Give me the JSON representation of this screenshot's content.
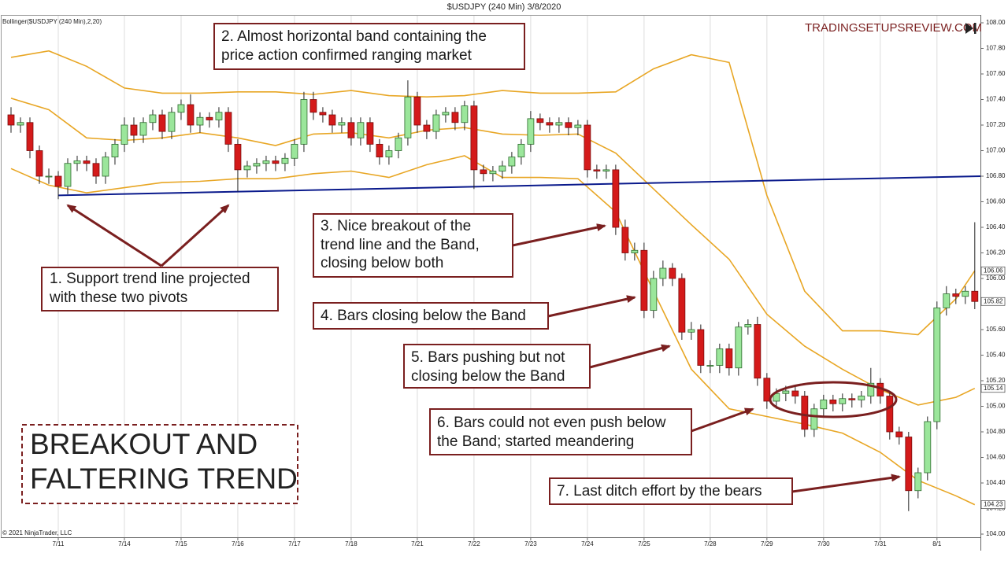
{
  "chart_data": {
    "type": "candlestick",
    "title": "$USDJPY (240 Min)  3/8/2020",
    "indicator_label": "Bollinger($USDJPY (240 Min),2,20)",
    "watermark": "TRADINGSETUPSREVIEW.COM",
    "copyright": "© 2021 NinjaTrader, LLC",
    "headline": [
      "BREAKOUT AND",
      "FALTERING TREND"
    ],
    "annotations": [
      {
        "lines": [
          "1. Support trend line projected",
          "with these two pivots"
        ]
      },
      {
        "lines": [
          "2. Almost horizontal band containing the",
          "price action confirmed ranging market"
        ]
      },
      {
        "lines": [
          "3. Nice breakout of the",
          "trend line and the Band,",
          "closing below both"
        ]
      },
      {
        "lines": [
          "4. Bars closing below the Band"
        ]
      },
      {
        "lines": [
          "5. Bars pushing but not",
          "closing below the Band"
        ]
      },
      {
        "lines": [
          "6. Bars could not even push below",
          "the Band; started meandering"
        ]
      },
      {
        "lines": [
          "7. Last ditch effort by the bears"
        ]
      }
    ],
    "categories": [
      null,
      null,
      null,
      null,
      null,
      "7/11",
      null,
      null,
      null,
      null,
      null,
      null,
      "7/14",
      null,
      null,
      null,
      null,
      null,
      "7/15",
      null,
      null,
      null,
      null,
      null,
      "7/16",
      null,
      null,
      null,
      null,
      null,
      "7/17",
      null,
      null,
      null,
      null,
      null,
      "7/18",
      null,
      null,
      null,
      null,
      null,
      null,
      "7/21",
      null,
      null,
      null,
      null,
      null,
      "7/22",
      null,
      null,
      null,
      null,
      null,
      "7/23",
      null,
      null,
      null,
      null,
      null,
      "7/24",
      null,
      null,
      null,
      null,
      null,
      "7/25",
      null,
      null,
      null,
      null,
      null,
      null,
      "7/28",
      null,
      null,
      null,
      null,
      null,
      "7/29",
      null,
      null,
      null,
      null,
      null,
      "7/30",
      null,
      null,
      null,
      null,
      null,
      "7/31",
      null,
      null,
      null,
      null,
      null,
      "8/1",
      null,
      null,
      null,
      null
    ],
    "open": [
      107.28,
      107.2,
      107.22,
      107.0,
      106.8,
      106.8,
      106.72,
      106.9,
      106.92,
      106.9,
      106.8,
      106.95,
      107.05,
      107.2,
      107.12,
      107.22,
      107.28,
      107.15,
      107.3,
      107.36,
      107.2,
      107.26,
      107.24,
      107.3,
      107.05,
      106.85,
      106.88,
      106.9,
      106.92,
      106.9,
      106.94,
      107.05,
      107.4,
      107.3,
      107.28,
      107.2,
      107.22,
      107.1,
      107.22,
      107.05,
      106.95,
      107.0,
      107.1,
      107.42,
      107.2,
      107.15,
      107.28,
      107.3,
      107.22,
      107.35,
      106.85,
      106.82,
      106.84,
      106.88,
      106.95,
      107.05,
      107.25,
      107.22,
      107.2,
      107.22,
      107.18,
      107.2,
      106.85,
      106.84,
      106.85,
      106.4,
      106.2,
      106.22,
      105.75,
      106.0,
      106.08,
      106.0,
      105.58,
      105.6,
      105.32,
      105.32,
      105.45,
      105.3,
      105.62,
      105.64,
      105.22,
      105.04,
      105.1,
      105.12,
      105.08,
      104.82,
      104.98,
      105.05,
      105.02,
      105.06,
      105.05,
      105.08,
      105.18,
      105.08,
      104.8,
      104.76,
      104.34,
      104.48,
      104.88,
      105.77,
      105.88,
      105.86,
      105.9
    ],
    "high": [
      107.34,
      107.26,
      107.26,
      107.04,
      106.86,
      106.84,
      106.94,
      106.96,
      106.96,
      106.94,
      106.99,
      107.09,
      107.26,
      107.26,
      107.26,
      107.32,
      107.32,
      107.34,
      107.4,
      107.44,
      107.3,
      107.3,
      107.34,
      107.34,
      107.09,
      106.92,
      106.94,
      106.96,
      106.96,
      106.98,
      107.09,
      107.46,
      107.46,
      107.34,
      107.32,
      107.26,
      107.26,
      107.26,
      107.26,
      107.09,
      107.04,
      107.14,
      107.55,
      107.46,
      107.24,
      107.32,
      107.34,
      107.34,
      107.39,
      107.39,
      106.89,
      106.88,
      106.92,
      106.99,
      107.09,
      107.31,
      107.29,
      107.26,
      107.26,
      107.26,
      107.24,
      107.24,
      106.89,
      106.89,
      106.89,
      106.46,
      106.28,
      106.28,
      106.06,
      106.14,
      106.12,
      106.04,
      105.66,
      105.64,
      105.36,
      105.49,
      105.49,
      105.66,
      105.68,
      105.7,
      105.26,
      105.14,
      105.16,
      105.16,
      105.12,
      105.02,
      105.09,
      105.09,
      105.1,
      105.1,
      105.12,
      105.3,
      105.22,
      105.12,
      104.84,
      104.8,
      104.52,
      104.92,
      105.82,
      105.94,
      105.92,
      105.94,
      106.44
    ],
    "low": [
      107.14,
      107.14,
      106.94,
      106.74,
      106.74,
      106.62,
      106.66,
      106.84,
      106.84,
      106.74,
      106.74,
      106.89,
      106.99,
      107.06,
      107.06,
      107.16,
      107.09,
      107.09,
      107.24,
      107.14,
      107.14,
      107.18,
      107.18,
      106.99,
      106.68,
      106.79,
      106.82,
      106.84,
      106.84,
      106.84,
      106.88,
      106.99,
      107.24,
      107.22,
      107.14,
      107.14,
      107.04,
      107.04,
      106.99,
      106.89,
      106.89,
      106.94,
      107.04,
      107.14,
      107.09,
      107.09,
      107.22,
      107.16,
      107.16,
      106.7,
      106.76,
      106.76,
      106.78,
      106.82,
      106.89,
      106.99,
      107.16,
      107.14,
      107.14,
      107.12,
      107.12,
      106.79,
      106.78,
      106.78,
      106.34,
      106.14,
      106.14,
      105.69,
      105.69,
      105.94,
      105.94,
      105.52,
      105.52,
      105.26,
      105.26,
      105.26,
      105.24,
      105.24,
      105.56,
      105.16,
      104.98,
      104.98,
      105.04,
      105.02,
      104.76,
      104.76,
      104.92,
      104.96,
      104.96,
      104.99,
      104.99,
      105.02,
      105.02,
      104.74,
      104.7,
      104.18,
      104.28,
      104.42,
      104.82,
      105.71,
      105.8,
      105.8,
      105.76
    ],
    "close": [
      107.2,
      107.22,
      107.0,
      106.8,
      106.8,
      106.72,
      106.9,
      106.92,
      106.9,
      106.8,
      106.95,
      107.05,
      107.2,
      107.12,
      107.22,
      107.28,
      107.15,
      107.3,
      107.36,
      107.2,
      107.26,
      107.24,
      107.3,
      107.05,
      106.85,
      106.88,
      106.9,
      106.92,
      106.9,
      106.94,
      107.05,
      107.4,
      107.3,
      107.28,
      107.2,
      107.22,
      107.1,
      107.22,
      107.05,
      106.95,
      107.0,
      107.1,
      107.42,
      107.2,
      107.15,
      107.28,
      107.3,
      107.22,
      107.35,
      106.85,
      106.82,
      106.84,
      106.88,
      106.95,
      107.05,
      107.25,
      107.22,
      107.2,
      107.22,
      107.18,
      107.2,
      106.85,
      106.84,
      106.85,
      106.4,
      106.2,
      106.22,
      105.75,
      106.0,
      106.08,
      106.0,
      105.58,
      105.6,
      105.32,
      105.32,
      105.45,
      105.3,
      105.62,
      105.64,
      105.22,
      105.04,
      105.1,
      105.12,
      105.08,
      104.82,
      104.98,
      105.05,
      105.02,
      105.06,
      105.05,
      105.08,
      105.18,
      105.08,
      104.8,
      104.76,
      104.34,
      104.48,
      104.88,
      105.77,
      105.88,
      105.86,
      105.9,
      105.82
    ],
    "up_color": "#9be69b",
    "down_color": "#d41a1a",
    "band_x": [
      0,
      4,
      8,
      12,
      16,
      20,
      24,
      28,
      32,
      36,
      40,
      44,
      48,
      52,
      56,
      60,
      64,
      68,
      72,
      76,
      80,
      84,
      88,
      92,
      96,
      100,
      102
    ],
    "bands": [
      {
        "color": "#e8a624",
        "values": [
          107.73,
          107.78,
          107.66,
          107.49,
          107.45,
          107.45,
          107.46,
          107.46,
          107.44,
          107.47,
          107.43,
          107.42,
          107.43,
          107.47,
          107.45,
          107.45,
          107.46,
          107.64,
          107.75,
          107.69,
          106.65,
          105.9,
          105.59,
          105.59,
          105.56,
          105.84,
          106.06
        ]
      },
      {
        "color": "#e8a624",
        "values": [
          107.41,
          107.32,
          107.1,
          107.08,
          107.1,
          107.14,
          107.1,
          107.04,
          107.13,
          107.14,
          107.1,
          107.16,
          107.18,
          107.13,
          107.12,
          107.13,
          106.98,
          106.7,
          106.42,
          106.15,
          105.72,
          105.47,
          105.29,
          105.13,
          105.01,
          105.07,
          105.14
        ]
      },
      {
        "color": "#e8a624",
        "values": [
          106.86,
          106.73,
          106.67,
          106.71,
          106.75,
          106.76,
          106.78,
          106.78,
          106.82,
          106.84,
          106.79,
          106.89,
          106.96,
          106.79,
          106.79,
          106.78,
          106.52,
          105.9,
          105.29,
          104.98,
          104.92,
          104.86,
          104.79,
          104.64,
          104.42,
          104.3,
          104.23
        ]
      }
    ],
    "trendline": {
      "color": "#0a1a8c",
      "x": [
        5,
        102.6
      ],
      "values": [
        106.65,
        106.8
      ]
    },
    "xlim": [
      -1,
      102.6
    ],
    "ylim": [
      104,
      108
    ],
    "yticks": [
      {
        "value": 104,
        "label": "104.00"
      },
      {
        "value": 104.2,
        "label": "104.20"
      },
      {
        "value": 104.4,
        "label": "104.40"
      },
      {
        "value": 104.6,
        "label": "104.60"
      },
      {
        "value": 104.8,
        "label": "104.80"
      },
      {
        "value": 105,
        "label": "105.00"
      },
      {
        "value": 105.2,
        "label": "105.20"
      },
      {
        "value": 105.4,
        "label": "105.40"
      },
      {
        "value": 105.6,
        "label": "105.60"
      },
      {
        "value": 105.8,
        "label": "105.80"
      },
      {
        "value": 106,
        "label": "106.00"
      },
      {
        "value": 106.2,
        "label": "106.20"
      },
      {
        "value": 106.4,
        "label": "106.40"
      },
      {
        "value": 106.6,
        "label": "106.60"
      },
      {
        "value": 106.8,
        "label": "106.80"
      },
      {
        "value": 107,
        "label": "107.00"
      },
      {
        "value": 107.2,
        "label": "107.20"
      },
      {
        "value": 107.4,
        "label": "107.40"
      },
      {
        "value": 107.6,
        "label": "107.60"
      },
      {
        "value": 107.8,
        "label": "107.80"
      },
      {
        "value": 108,
        "label": "108.00"
      }
    ],
    "grid": true
  }
}
